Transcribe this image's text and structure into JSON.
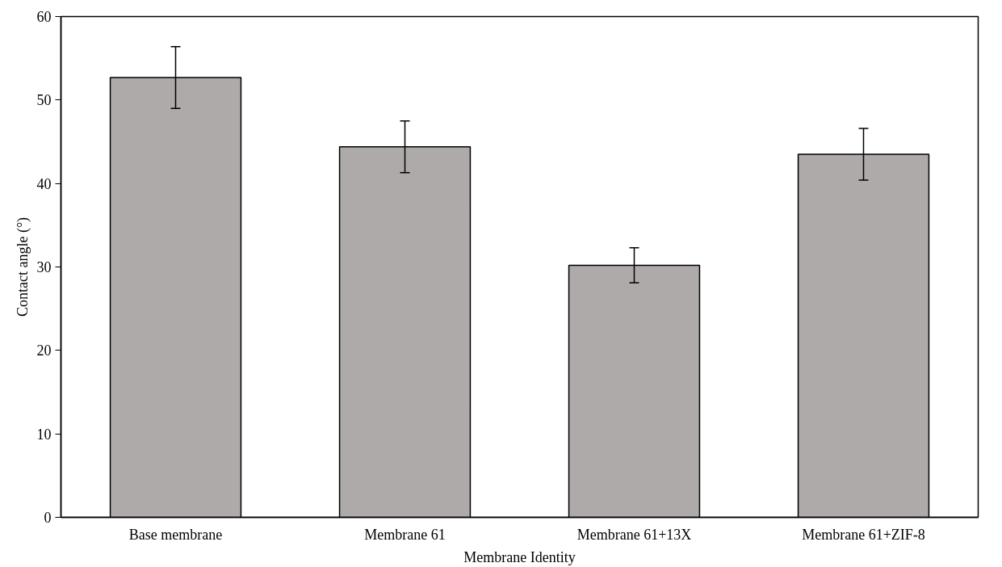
{
  "chart_data": {
    "type": "bar",
    "xlabel": "Membrane Identity",
    "ylabel": "Contact angle (°)",
    "categories": [
      "Base membrane",
      "Membrane 61",
      "Membrane 61+13X",
      "Membrane 61+ZIF-8"
    ],
    "values": [
      52.7,
      44.4,
      30.2,
      43.5
    ],
    "errors": [
      3.7,
      3.1,
      2.1,
      3.1
    ],
    "color": "#aeaaaa",
    "ylim": [
      0,
      60
    ],
    "yticks": [
      0,
      10,
      20,
      30,
      40,
      50,
      60
    ],
    "grid": false
  }
}
